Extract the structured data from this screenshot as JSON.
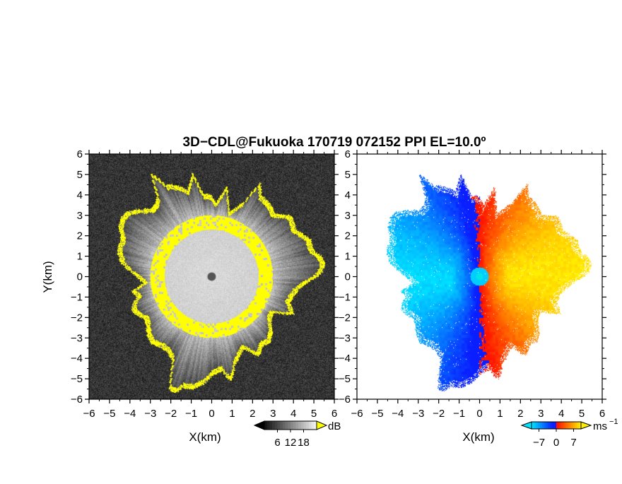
{
  "chart_data": {
    "type": "heatmap",
    "title": "3D−CDL@Fukuoka 170719 072152 PPI EL=10.0º",
    "panels": [
      {
        "name": "backscatter",
        "xlabel": "X(km)",
        "ylabel": "Y(km)",
        "xlim": [
          -6,
          6
        ],
        "ylim": [
          -6,
          6
        ],
        "xticks": [
          "−6",
          "−5",
          "−4",
          "−3",
          "−2",
          "−1",
          "0",
          "1",
          "2",
          "3",
          "4",
          "5",
          "6"
        ],
        "yticks": [
          "6",
          "5",
          "4",
          "3",
          "2",
          "1",
          "0",
          "−1",
          "−2",
          "−3",
          "−4",
          "−5",
          "−6"
        ],
        "colorbar": {
          "unit": "dB",
          "tick_labels": [
            "6",
            "12",
            "18"
          ],
          "range": [
            0,
            24
          ]
        },
        "colors": {
          "background": "#1e1e1e",
          "low": "#3a3a3a",
          "high": "#d6d6d6",
          "saturated": "#ffff00",
          "center_dot": "#555555"
        },
        "inner_radius_km": 2.3,
        "edge_ring_km": [
          2.3,
          3.0
        ],
        "max_range_km": 5.8
      },
      {
        "name": "doppler_velocity",
        "xlabel": "X(km)",
        "xlim": [
          -6,
          6
        ],
        "ylim": [
          -6,
          6
        ],
        "xticks": [
          "−6",
          "−5",
          "−4",
          "−3",
          "−2",
          "−1",
          "0",
          "1",
          "2",
          "3",
          "4",
          "5",
          "6"
        ],
        "yticks": [
          "6",
          "5",
          "4",
          "3",
          "2",
          "1",
          "0",
          "−1",
          "−2",
          "−3",
          "−4",
          "−5",
          "−6"
        ],
        "colorbar": {
          "unit": "ms",
          "unit_superscript": "−1",
          "tick_labels": [
            "−7",
            "0",
            "7"
          ],
          "range": [
            -10,
            10
          ]
        },
        "colors": {
          "cyan": "#00e5ff",
          "blue": "#0000ff",
          "red": "#ff0000",
          "yellow": "#ffee00",
          "center_dot": "#00e5e5"
        },
        "max_range_km": 5.8
      }
    ]
  }
}
